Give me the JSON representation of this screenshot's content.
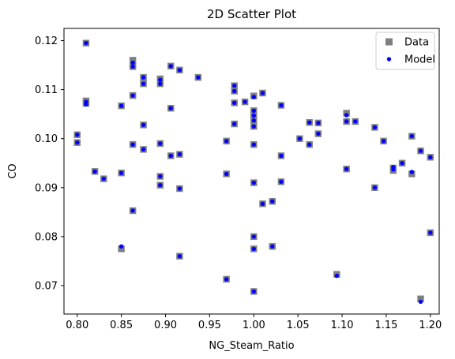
{
  "chart_data": {
    "type": "scatter",
    "title": "2D Scatter Plot",
    "xlabel": "NG_Steam_Ratio",
    "ylabel": "CO",
    "xlim": [
      0.785,
      1.21
    ],
    "ylim": [
      0.0642,
      0.1225
    ],
    "xticks": [
      0.8,
      0.85,
      0.9,
      0.95,
      1.0,
      1.05,
      1.1,
      1.15,
      1.2
    ],
    "xtick_labels": [
      "0.80",
      "0.85",
      "0.90",
      "0.95",
      "1.00",
      "1.05",
      "1.10",
      "1.15",
      "1.20"
    ],
    "yticks": [
      0.07,
      0.08,
      0.09,
      0.1,
      0.11,
      0.12
    ],
    "ytick_labels": [
      "0.07",
      "0.08",
      "0.09",
      "0.10",
      "0.11",
      "0.12"
    ],
    "grid": false,
    "legend_position": "top-right",
    "series": [
      {
        "name": "Data",
        "marker": "square",
        "color": "#7f7f7f",
        "points": [
          [
            0.8,
            0.1008
          ],
          [
            0.8,
            0.0992
          ],
          [
            0.81,
            0.1195
          ],
          [
            0.81,
            0.1077
          ],
          [
            0.81,
            0.1072
          ],
          [
            0.82,
            0.0933
          ],
          [
            0.83,
            0.0918
          ],
          [
            0.85,
            0.1067
          ],
          [
            0.85,
            0.093
          ],
          [
            0.85,
            0.0775
          ],
          [
            0.863,
            0.116
          ],
          [
            0.863,
            0.1147
          ],
          [
            0.863,
            0.1088
          ],
          [
            0.863,
            0.0988
          ],
          [
            0.863,
            0.0853
          ],
          [
            0.875,
            0.1125
          ],
          [
            0.875,
            0.1112
          ],
          [
            0.875,
            0.1028
          ],
          [
            0.875,
            0.0978
          ],
          [
            0.894,
            0.1122
          ],
          [
            0.894,
            0.1112
          ],
          [
            0.894,
            0.099
          ],
          [
            0.894,
            0.0923
          ],
          [
            0.894,
            0.0905
          ],
          [
            0.906,
            0.1148
          ],
          [
            0.906,
            0.1062
          ],
          [
            0.906,
            0.0965
          ],
          [
            0.916,
            0.114
          ],
          [
            0.916,
            0.0968
          ],
          [
            0.916,
            0.0898
          ],
          [
            0.916,
            0.076
          ],
          [
            0.937,
            0.1125
          ],
          [
            0.969,
            0.0995
          ],
          [
            0.969,
            0.0928
          ],
          [
            0.969,
            0.0713
          ],
          [
            0.978,
            0.1108
          ],
          [
            0.978,
            0.1097
          ],
          [
            0.978,
            0.1073
          ],
          [
            0.978,
            0.103
          ],
          [
            0.99,
            0.1075
          ],
          [
            1.0,
            0.1087
          ],
          [
            1.0,
            0.1057
          ],
          [
            1.0,
            0.1047
          ],
          [
            1.0,
            0.1037
          ],
          [
            1.0,
            0.1025
          ],
          [
            1.0,
            0.0988
          ],
          [
            1.0,
            0.091
          ],
          [
            1.0,
            0.08
          ],
          [
            1.0,
            0.0775
          ],
          [
            1.0,
            0.0688
          ],
          [
            1.01,
            0.1093
          ],
          [
            1.01,
            0.0867
          ],
          [
            1.021,
            0.0872
          ],
          [
            1.021,
            0.078
          ],
          [
            1.031,
            0.1068
          ],
          [
            1.031,
            0.0965
          ],
          [
            1.031,
            0.0912
          ],
          [
            1.052,
            0.1
          ],
          [
            1.063,
            0.1033
          ],
          [
            1.063,
            0.0988
          ],
          [
            1.073,
            0.1032
          ],
          [
            1.073,
            0.101
          ],
          [
            1.094,
            0.0723
          ],
          [
            1.105,
            0.1052
          ],
          [
            1.105,
            0.1035
          ],
          [
            1.105,
            0.0938
          ],
          [
            1.115,
            0.1035
          ],
          [
            1.137,
            0.1023
          ],
          [
            1.137,
            0.09
          ],
          [
            1.147,
            0.0995
          ],
          [
            1.158,
            0.094
          ],
          [
            1.158,
            0.0935
          ],
          [
            1.168,
            0.095
          ],
          [
            1.179,
            0.1005
          ],
          [
            1.179,
            0.0928
          ],
          [
            1.189,
            0.0975
          ],
          [
            1.189,
            0.0673
          ],
          [
            1.2,
            0.0962
          ],
          [
            1.2,
            0.0808
          ]
        ]
      },
      {
        "name": "Model",
        "marker": "circle",
        "color": "#0000ff",
        "points": [
          [
            0.8,
            0.1008
          ],
          [
            0.8,
            0.0992
          ],
          [
            0.81,
            0.1195
          ],
          [
            0.81,
            0.1075
          ],
          [
            0.81,
            0.107
          ],
          [
            0.82,
            0.0933
          ],
          [
            0.83,
            0.0918
          ],
          [
            0.85,
            0.1067
          ],
          [
            0.85,
            0.093
          ],
          [
            0.85,
            0.078
          ],
          [
            0.863,
            0.1155
          ],
          [
            0.863,
            0.1147
          ],
          [
            0.863,
            0.1088
          ],
          [
            0.863,
            0.0988
          ],
          [
            0.863,
            0.0853
          ],
          [
            0.875,
            0.1125
          ],
          [
            0.875,
            0.1112
          ],
          [
            0.875,
            0.1028
          ],
          [
            0.875,
            0.0978
          ],
          [
            0.894,
            0.112
          ],
          [
            0.894,
            0.1112
          ],
          [
            0.894,
            0.099
          ],
          [
            0.894,
            0.0923
          ],
          [
            0.894,
            0.0905
          ],
          [
            0.906,
            0.1148
          ],
          [
            0.906,
            0.1062
          ],
          [
            0.906,
            0.0965
          ],
          [
            0.916,
            0.114
          ],
          [
            0.916,
            0.0968
          ],
          [
            0.916,
            0.0898
          ],
          [
            0.916,
            0.076
          ],
          [
            0.937,
            0.1125
          ],
          [
            0.969,
            0.0995
          ],
          [
            0.969,
            0.0928
          ],
          [
            0.969,
            0.0713
          ],
          [
            0.978,
            0.1108
          ],
          [
            0.978,
            0.1097
          ],
          [
            0.978,
            0.1073
          ],
          [
            0.978,
            0.103
          ],
          [
            0.99,
            0.1075
          ],
          [
            1.0,
            0.1085
          ],
          [
            1.0,
            0.1057
          ],
          [
            1.0,
            0.1047
          ],
          [
            1.0,
            0.1037
          ],
          [
            1.0,
            0.1025
          ],
          [
            1.0,
            0.0988
          ],
          [
            1.0,
            0.091
          ],
          [
            1.0,
            0.08
          ],
          [
            1.0,
            0.0775
          ],
          [
            1.0,
            0.0688
          ],
          [
            1.01,
            0.1093
          ],
          [
            1.01,
            0.0867
          ],
          [
            1.021,
            0.0872
          ],
          [
            1.021,
            0.078
          ],
          [
            1.031,
            0.1068
          ],
          [
            1.031,
            0.0965
          ],
          [
            1.031,
            0.0912
          ],
          [
            1.052,
            0.1
          ],
          [
            1.063,
            0.1033
          ],
          [
            1.063,
            0.0988
          ],
          [
            1.073,
            0.1032
          ],
          [
            1.073,
            0.101
          ],
          [
            1.094,
            0.072
          ],
          [
            1.105,
            0.1048
          ],
          [
            1.105,
            0.1035
          ],
          [
            1.105,
            0.0938
          ],
          [
            1.115,
            0.1035
          ],
          [
            1.137,
            0.1023
          ],
          [
            1.137,
            0.09
          ],
          [
            1.147,
            0.0995
          ],
          [
            1.158,
            0.0942
          ],
          [
            1.158,
            0.0937
          ],
          [
            1.168,
            0.095
          ],
          [
            1.179,
            0.1005
          ],
          [
            1.179,
            0.0932
          ],
          [
            1.189,
            0.0975
          ],
          [
            1.189,
            0.0667
          ],
          [
            1.2,
            0.0962
          ],
          [
            1.2,
            0.0808
          ]
        ]
      }
    ]
  }
}
